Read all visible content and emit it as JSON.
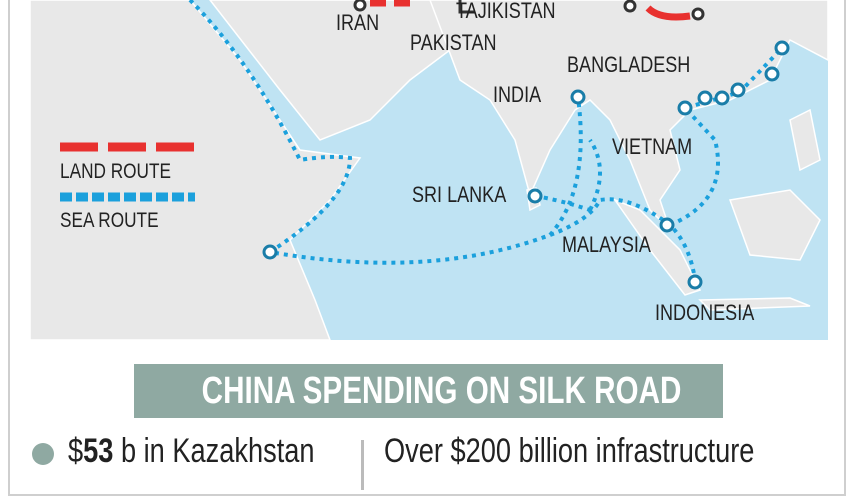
{
  "map": {
    "colors": {
      "sea": "#bfe3f3",
      "land": "#e8e8e8",
      "land_route": "#e8312f",
      "sea_route": "#1ba0dc",
      "accent": "#8fa9a2"
    },
    "countries": [
      "IRAN",
      "TAJIKISTAN",
      "PAKISTAN",
      "INDIA",
      "BANGLADESH",
      "VIETNAM",
      "SRI LANKA",
      "MALAYSIA",
      "INDONESIA"
    ],
    "legend": {
      "land_route": "LAND ROUTE",
      "sea_route": "SEA ROUTE"
    }
  },
  "title": "CHINA SPENDING ON SILK ROAD",
  "facts": {
    "kazakhstan_prefix": "$",
    "kazakhstan_amount": "53",
    "kazakhstan_suffix": " b in Kazakhstan",
    "infrastructure": "Over $200 billion infrastructure"
  }
}
